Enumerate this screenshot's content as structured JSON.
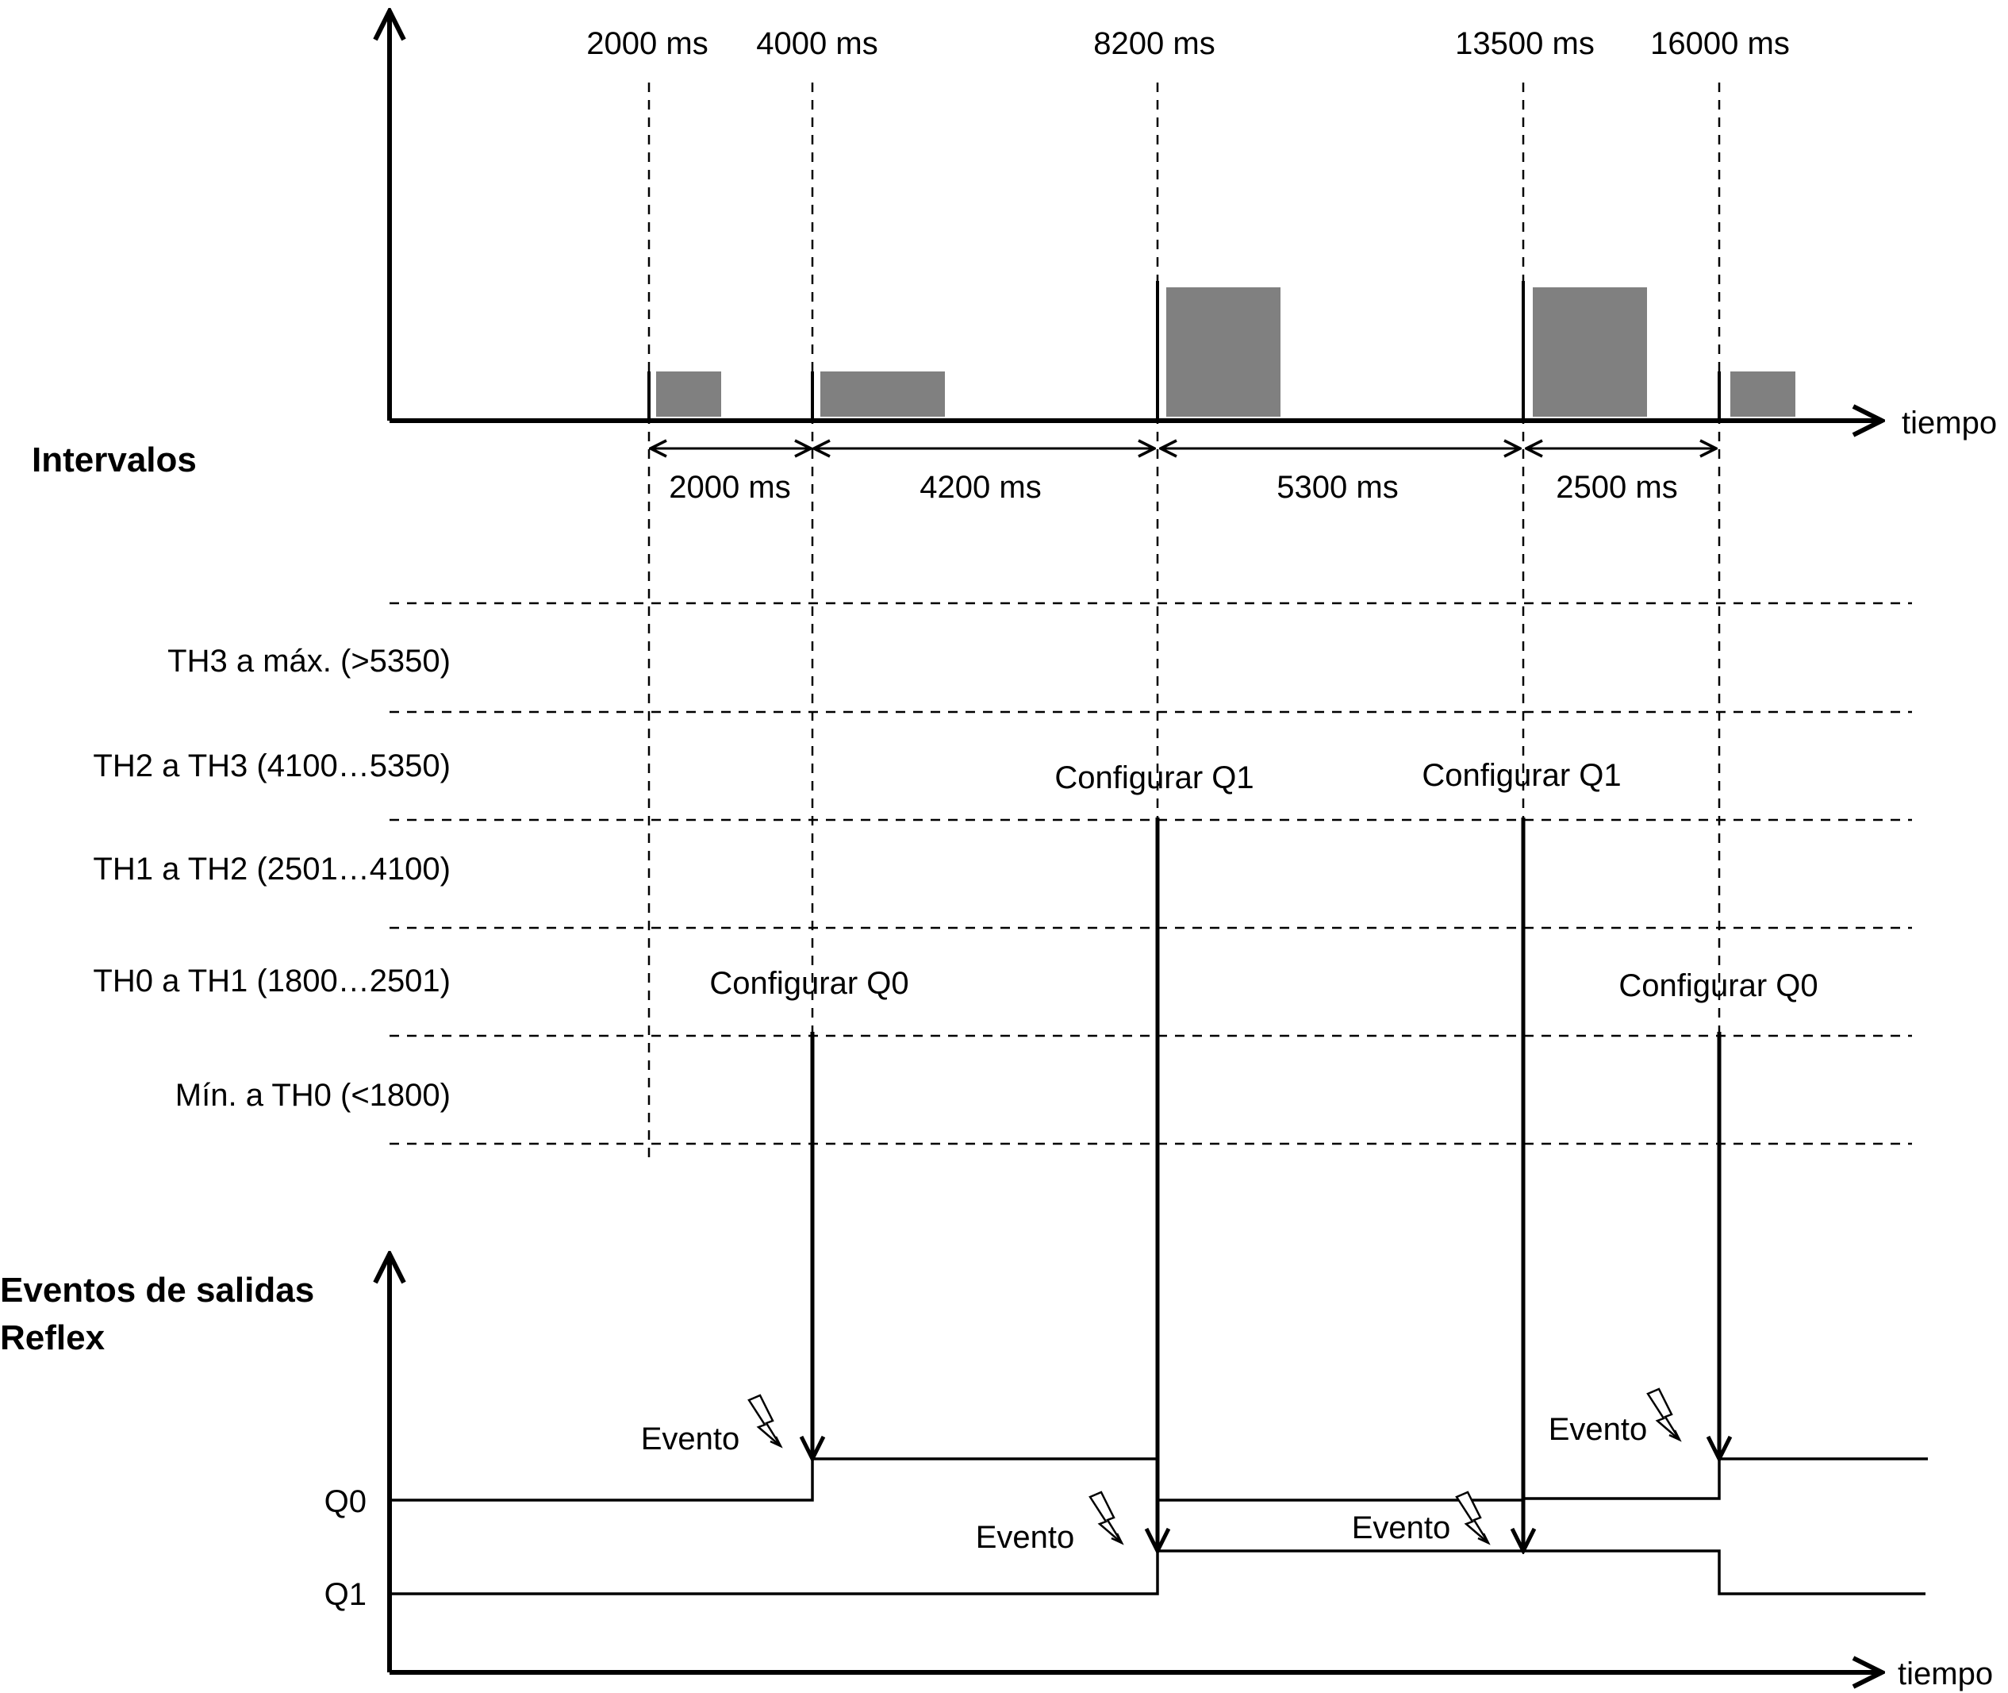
{
  "top": {
    "time_labels": [
      "2000 ms",
      "4000 ms",
      "8200 ms",
      "13500 ms",
      "16000 ms"
    ],
    "axis_label": "tiempo",
    "section_title": "Intervalos",
    "interval_labels": [
      "2000 ms",
      "4200 ms",
      "5300 ms",
      "2500 ms"
    ]
  },
  "ranges": {
    "labels": [
      "TH3 a máx. (>5350)",
      "TH2 a TH3 (4100…5350)",
      "TH1 a TH2 (2501…4100)",
      "TH0 a TH1 (1800…2501)",
      "Mín. a TH0 (<1800)"
    ],
    "actions": [
      "Configurar Q1",
      "Configurar Q1",
      "Configurar Q0",
      "Configurar Q0"
    ]
  },
  "bottom": {
    "title_line1": "Eventos de salidas",
    "title_line2": "Reflex",
    "q0_label": "Q0",
    "q1_label": "Q1",
    "event_label": "Evento",
    "axis_label": "tiempo"
  },
  "colors": {
    "pulse": "#808080",
    "line": "#000000"
  }
}
